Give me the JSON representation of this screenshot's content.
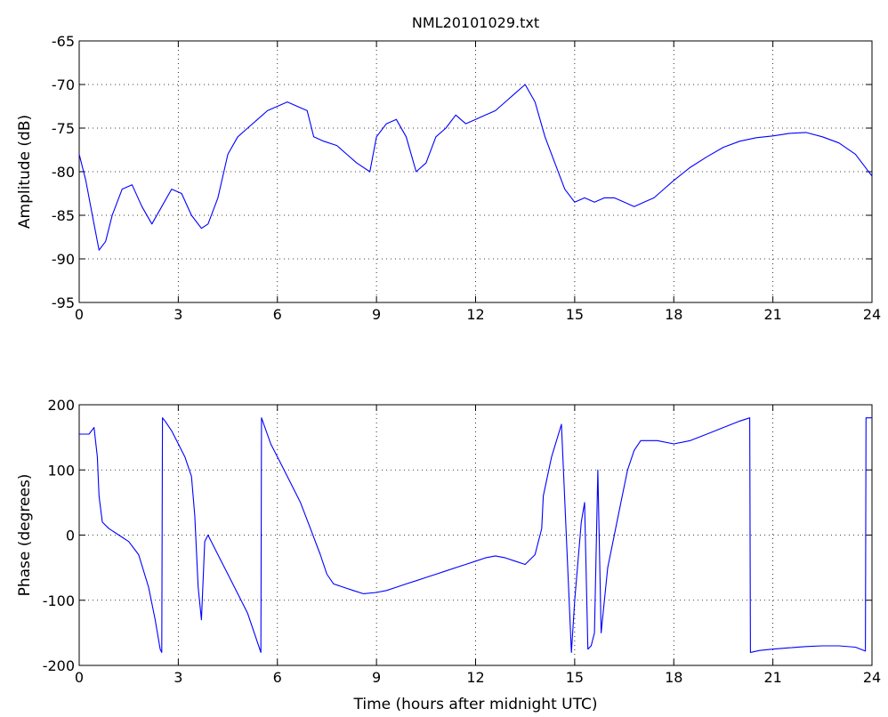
{
  "chart_data": [
    {
      "type": "line",
      "title": "NML20101029.txt",
      "xlabel": "",
      "ylabel": "Amplitude (dB)",
      "xlim": [
        0,
        24
      ],
      "ylim": [
        -95,
        -65
      ],
      "xticks": [
        "0",
        "3",
        "6",
        "9",
        "12",
        "15",
        "18",
        "21",
        "24"
      ],
      "yticks": [
        "-65",
        "-70",
        "-75",
        "-80",
        "-85",
        "-90",
        "-95"
      ],
      "grid": true,
      "color": "#0000ff",
      "series": [
        {
          "x": [
            0,
            0.2,
            0.4,
            0.6,
            0.8,
            1.0,
            1.3,
            1.6,
            1.9,
            2.2,
            2.5,
            2.8,
            3.1,
            3.4,
            3.7,
            3.9,
            4.2,
            4.5,
            4.8,
            5.1,
            5.4,
            5.7,
            6.0,
            6.3,
            6.6,
            6.9,
            7.1,
            7.4,
            7.8,
            8.1,
            8.4,
            8.8,
            9.0,
            9.3,
            9.6,
            9.9,
            10.2,
            10.5,
            10.8,
            11.1,
            11.4,
            11.7,
            12.0,
            12.3,
            12.6,
            12.9,
            13.2,
            13.5,
            13.8,
            14.1,
            14.4,
            14.7,
            15.0,
            15.3,
            15.6,
            15.9,
            16.2,
            16.5,
            16.8,
            17.1,
            17.4,
            17.7,
            18.0,
            18.5,
            19.0,
            19.5,
            20.0,
            20.5,
            21.0,
            21.5,
            22.0,
            22.5,
            23.0,
            23.5,
            24.0
          ],
          "y": [
            -78,
            -81,
            -85,
            -89,
            -88,
            -85,
            -82,
            -81.5,
            -84,
            -86,
            -84,
            -82,
            -82.5,
            -85,
            -86.5,
            -86,
            -83,
            -78,
            -76,
            -75,
            -74,
            -73,
            -72.5,
            -72,
            -72.5,
            -73,
            -76,
            -76.5,
            -77,
            -78,
            -79,
            -80,
            -76,
            -74.5,
            -74,
            -76,
            -80,
            -79,
            -76,
            -75,
            -73.5,
            -74.5,
            -74,
            -73.5,
            -73,
            -72,
            -71,
            -70,
            -72,
            -76,
            -79,
            -82,
            -83.5,
            -83,
            -83.5,
            -83,
            -83,
            -83.5,
            -84,
            -83.5,
            -83,
            -82,
            -81,
            -79.5,
            -78.3,
            -77.2,
            -76.5,
            -76.1,
            -75.9,
            -75.6,
            -75.5,
            -76,
            -76.7,
            -78,
            -80.5
          ]
        }
      ]
    },
    {
      "type": "line",
      "title": "",
      "xlabel": "Time (hours after midnight UTC)",
      "ylabel": "Phase (degrees)",
      "xlim": [
        0,
        24
      ],
      "ylim": [
        -200,
        200
      ],
      "xticks": [
        "0",
        "3",
        "6",
        "9",
        "12",
        "15",
        "18",
        "21",
        "24"
      ],
      "yticks": [
        "200",
        "100",
        "0",
        "-100",
        "-200"
      ],
      "grid": true,
      "color": "#0000ff",
      "series": [
        {
          "x": [
            0,
            0.3,
            0.45,
            0.55,
            0.6,
            0.7,
            0.9,
            1.2,
            1.5,
            1.8,
            2.1,
            2.3,
            2.45,
            2.5,
            2.52,
            2.6,
            2.8,
            3.0,
            3.2,
            3.4,
            3.5,
            3.6,
            3.7,
            3.8,
            3.9,
            4.2,
            4.5,
            4.8,
            5.1,
            5.5,
            5.52,
            5.8,
            6.1,
            6.4,
            6.7,
            7.0,
            7.3,
            7.5,
            7.7,
            8.0,
            8.3,
            8.6,
            9.0,
            9.3,
            9.6,
            9.9,
            10.2,
            10.5,
            10.8,
            11.1,
            11.4,
            11.7,
            12.0,
            12.3,
            12.6,
            12.9,
            13.2,
            13.5,
            13.8,
            14.0,
            14.05,
            14.3,
            14.6,
            14.9,
            15.0,
            15.1,
            15.2,
            15.3,
            15.4,
            15.5,
            15.6,
            15.7,
            15.8,
            16.0,
            16.2,
            16.4,
            16.6,
            16.8,
            17.0,
            17.5,
            18.0,
            18.5,
            19.0,
            19.5,
            20.0,
            20.3,
            20.32,
            20.6,
            21.0,
            21.5,
            22.0,
            22.5,
            23.0,
            23.5,
            23.8,
            23.82,
            24.0
          ],
          "y": [
            155,
            155,
            165,
            120,
            60,
            20,
            10,
            0,
            -10,
            -30,
            -80,
            -130,
            -175,
            -180,
            180,
            175,
            160,
            140,
            120,
            90,
            30,
            -80,
            -130,
            -10,
            0,
            -30,
            -60,
            -90,
            -120,
            -180,
            180,
            140,
            110,
            80,
            50,
            10,
            -30,
            -60,
            -75,
            -80,
            -85,
            -90,
            -88,
            -85,
            -80,
            -75,
            -70,
            -65,
            -60,
            -55,
            -50,
            -45,
            -40,
            -35,
            -32,
            -35,
            -40,
            -45,
            -30,
            10,
            60,
            120,
            170,
            -180,
            -100,
            -40,
            20,
            50,
            -175,
            -170,
            -150,
            100,
            -150,
            -50,
            0,
            50,
            100,
            130,
            145,
            145,
            140,
            145,
            155,
            165,
            175,
            180,
            -180,
            -177,
            -175,
            -173,
            -171,
            -170,
            -170,
            -172,
            -178,
            180,
            180
          ]
        }
      ]
    }
  ]
}
